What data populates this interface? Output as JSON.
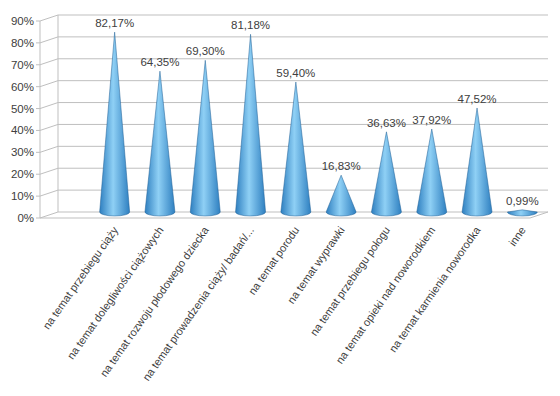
{
  "chart_data": {
    "type": "bar",
    "categories": [
      "na temat przebiegu ciąży",
      "na temat dolegliwości ciążowych",
      "na temat rozwoju płodowego dziecka",
      "na temat prowadzenia ciąży/ badań/...",
      "na temat porodu",
      "na temat wyprawki",
      "na temat przebiegu połogu",
      "na temat opieki nad noworodkiem",
      "na temat karmienia noworodka",
      "inne"
    ],
    "values": [
      82.17,
      64.35,
      69.3,
      81.18,
      59.4,
      16.83,
      36.63,
      37.92,
      47.52,
      0.99
    ],
    "value_labels": [
      "82,17%",
      "64,35%",
      "69,30%",
      "81,18%",
      "59,40%",
      "16,83%",
      "36,63%",
      "37,92%",
      "47,52%",
      "0,99%"
    ],
    "color": "#2e7fc0",
    "ylim": [
      0,
      90
    ],
    "yticks": [
      {
        "value": 0,
        "label": "0%"
      },
      {
        "value": 10,
        "label": "10%"
      },
      {
        "value": 20,
        "label": "20%"
      },
      {
        "value": 30,
        "label": "30%"
      },
      {
        "value": 40,
        "label": "40%"
      },
      {
        "value": 50,
        "label": "50%"
      },
      {
        "value": 60,
        "label": "60%"
      },
      {
        "value": 70,
        "label": "70%"
      },
      {
        "value": 80,
        "label": "80%"
      },
      {
        "value": 90,
        "label": "90%"
      }
    ],
    "grid": true,
    "data_labels": true
  }
}
